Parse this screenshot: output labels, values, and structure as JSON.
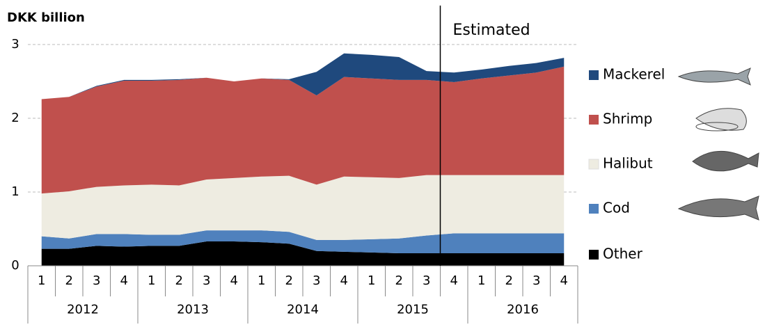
{
  "chart_data": {
    "type": "stacked_area",
    "y_label": "DKK billion",
    "annotation": "Estimated",
    "categories": [
      "1",
      "2",
      "3",
      "4",
      "1",
      "2",
      "3",
      "4",
      "1",
      "2",
      "3",
      "4",
      "1",
      "2",
      "3",
      "4",
      "1",
      "2",
      "3",
      "4"
    ],
    "years": [
      "2012",
      "2013",
      "2014",
      "2015",
      "2016"
    ],
    "ylim": [
      0,
      3
    ],
    "yticks": [
      0,
      1,
      2,
      3
    ],
    "grid": true,
    "series": [
      {
        "name": "Other",
        "color": "#000000",
        "values": [
          0.23,
          0.23,
          0.27,
          0.26,
          0.27,
          0.27,
          0.33,
          0.33,
          0.32,
          0.3,
          0.2,
          0.19,
          0.18,
          0.17,
          0.17,
          0.17,
          0.17,
          0.17,
          0.17,
          0.17
        ]
      },
      {
        "name": "Cod",
        "color": "#4f81bd",
        "values": [
          0.17,
          0.14,
          0.16,
          0.17,
          0.15,
          0.15,
          0.15,
          0.15,
          0.16,
          0.16,
          0.15,
          0.16,
          0.18,
          0.2,
          0.24,
          0.27,
          0.27,
          0.27,
          0.27,
          0.27
        ]
      },
      {
        "name": "Halibut",
        "color": "#eeece1",
        "values": [
          0.58,
          0.64,
          0.64,
          0.66,
          0.68,
          0.67,
          0.69,
          0.71,
          0.73,
          0.76,
          0.75,
          0.86,
          0.84,
          0.82,
          0.82,
          0.79,
          0.79,
          0.79,
          0.79,
          0.79
        ]
      },
      {
        "name": "Shrimp",
        "color": "#c0504d",
        "values": [
          1.28,
          1.28,
          1.36,
          1.42,
          1.41,
          1.43,
          1.38,
          1.31,
          1.33,
          1.3,
          1.21,
          1.35,
          1.34,
          1.33,
          1.29,
          1.26,
          1.31,
          1.35,
          1.39,
          1.47
        ]
      },
      {
        "name": "Mackerel",
        "color": "#1f497d",
        "values": [
          0,
          0,
          0.01,
          0.01,
          0.01,
          0.01,
          0,
          0,
          0,
          0.01,
          0.32,
          0.32,
          0.32,
          0.31,
          0.12,
          0.13,
          0.12,
          0.13,
          0.13,
          0.12
        ]
      }
    ]
  }
}
